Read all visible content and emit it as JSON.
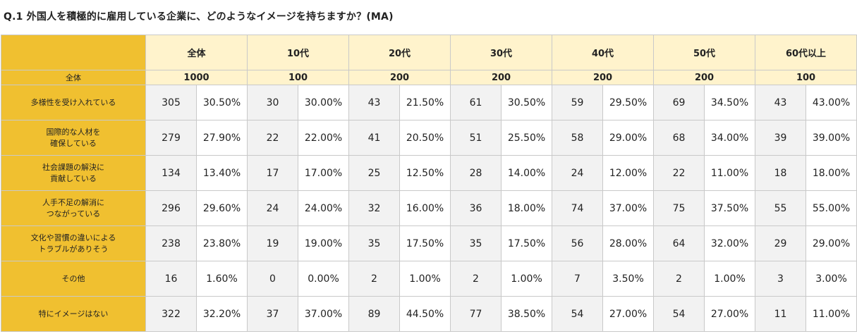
{
  "title": "Q.1  外国人を積極的に雇用している企業に、どのようなイメージを持ちますか？(MA)",
  "table": {
    "groups": [
      "全体",
      "10代",
      "20代",
      "30代",
      "40代",
      "50代",
      "60代以上"
    ],
    "base_label": "全体",
    "base_values": [
      "1000",
      "100",
      "200",
      "200",
      "200",
      "200",
      "100"
    ],
    "rows": [
      {
        "label_lines": [
          "多様性を受け入れている"
        ],
        "cells": [
          "305",
          "30.50%",
          "30",
          "30.00%",
          "43",
          "21.50%",
          "61",
          "30.50%",
          "59",
          "29.50%",
          "69",
          "34.50%",
          "43",
          "43.00%"
        ]
      },
      {
        "label_lines": [
          "国際的な人材を",
          "確保している"
        ],
        "cells": [
          "279",
          "27.90%",
          "22",
          "22.00%",
          "41",
          "20.50%",
          "51",
          "25.50%",
          "58",
          "29.00%",
          "68",
          "34.00%",
          "39",
          "39.00%"
        ]
      },
      {
        "label_lines": [
          "社会課題の解決に",
          "貢献している"
        ],
        "cells": [
          "134",
          "13.40%",
          "17",
          "17.00%",
          "25",
          "12.50%",
          "28",
          "14.00%",
          "24",
          "12.00%",
          "22",
          "11.00%",
          "18",
          "18.00%"
        ]
      },
      {
        "label_lines": [
          "人手不足の解消に",
          "つながっている"
        ],
        "cells": [
          "296",
          "29.60%",
          "24",
          "24.00%",
          "32",
          "16.00%",
          "36",
          "18.00%",
          "74",
          "37.00%",
          "75",
          "37.50%",
          "55",
          "55.00%"
        ]
      },
      {
        "label_lines": [
          "文化や習慣の違いによる",
          "トラブルがありそう"
        ],
        "cells": [
          "238",
          "23.80%",
          "19",
          "19.00%",
          "35",
          "17.50%",
          "35",
          "17.50%",
          "56",
          "28.00%",
          "64",
          "32.00%",
          "29",
          "29.00%"
        ]
      },
      {
        "label_lines": [
          "その他"
        ],
        "cells": [
          "16",
          "1.60%",
          "0",
          "0.00%",
          "2",
          "1.00%",
          "2",
          "1.00%",
          "7",
          "3.50%",
          "2",
          "1.00%",
          "3",
          "3.00%"
        ]
      },
      {
        "label_lines": [
          "特にイメージはない"
        ],
        "cells": [
          "322",
          "32.20%",
          "37",
          "37.00%",
          "89",
          "44.50%",
          "77",
          "38.50%",
          "54",
          "27.00%",
          "54",
          "27.00%",
          "11",
          "11.00%"
        ]
      }
    ]
  },
  "colors": {
    "label_fill": "#f0c030",
    "header_fill": "#fff3cc",
    "count_fill": "#f2f2f2",
    "percent_fill": "#ffffff",
    "border": "#c9c9c9"
  }
}
